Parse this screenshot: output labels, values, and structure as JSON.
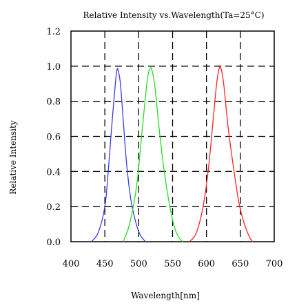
{
  "chart_data": {
    "type": "line",
    "title": "Relative Intensity vs.Wavelength(Ta=25°C)",
    "xlabel": "Wavelength[nm]",
    "ylabel": "Relative Intensity",
    "xlim": [
      400,
      700
    ],
    "ylim": [
      0.0,
      1.2
    ],
    "x_ticks": [
      400,
      450,
      500,
      550,
      600,
      650,
      700
    ],
    "x_tick_labels": [
      "400",
      "450",
      "500",
      "550",
      "600",
      "650",
      "700"
    ],
    "y_ticks": [
      0.0,
      0.2,
      0.4,
      0.6,
      0.8,
      1.0,
      1.2
    ],
    "y_tick_labels": [
      "0.0",
      "0.2",
      "0.4",
      "0.6",
      "0.8",
      "1.0",
      "1.2"
    ],
    "grid": "dashed",
    "series": [
      {
        "color": "#3b3bdb",
        "x": [
          430,
          440,
          450,
          455,
          460,
          465,
          468,
          470,
          473,
          477,
          482,
          488,
          495,
          502,
          510
        ],
        "y": [
          0.0,
          0.05,
          0.2,
          0.4,
          0.65,
          0.88,
          0.98,
          0.97,
          0.9,
          0.7,
          0.45,
          0.25,
          0.12,
          0.04,
          0.0
        ]
      },
      {
        "color": "#22dd22",
        "x": [
          477,
          485,
          492,
          498,
          503,
          508,
          513,
          517,
          520,
          524,
          530,
          537,
          545,
          553,
          560,
          565
        ],
        "y": [
          0.0,
          0.08,
          0.2,
          0.35,
          0.55,
          0.75,
          0.93,
          0.99,
          0.97,
          0.88,
          0.65,
          0.42,
          0.22,
          0.08,
          0.02,
          0.0
        ]
      },
      {
        "color": "#ff2222",
        "x": [
          575,
          585,
          595,
          603,
          610,
          615,
          619,
          622,
          626,
          632,
          640,
          648,
          656,
          663,
          668
        ],
        "y": [
          0.0,
          0.05,
          0.2,
          0.42,
          0.7,
          0.9,
          0.99,
          0.98,
          0.88,
          0.65,
          0.42,
          0.22,
          0.1,
          0.03,
          0.0
        ]
      }
    ]
  }
}
